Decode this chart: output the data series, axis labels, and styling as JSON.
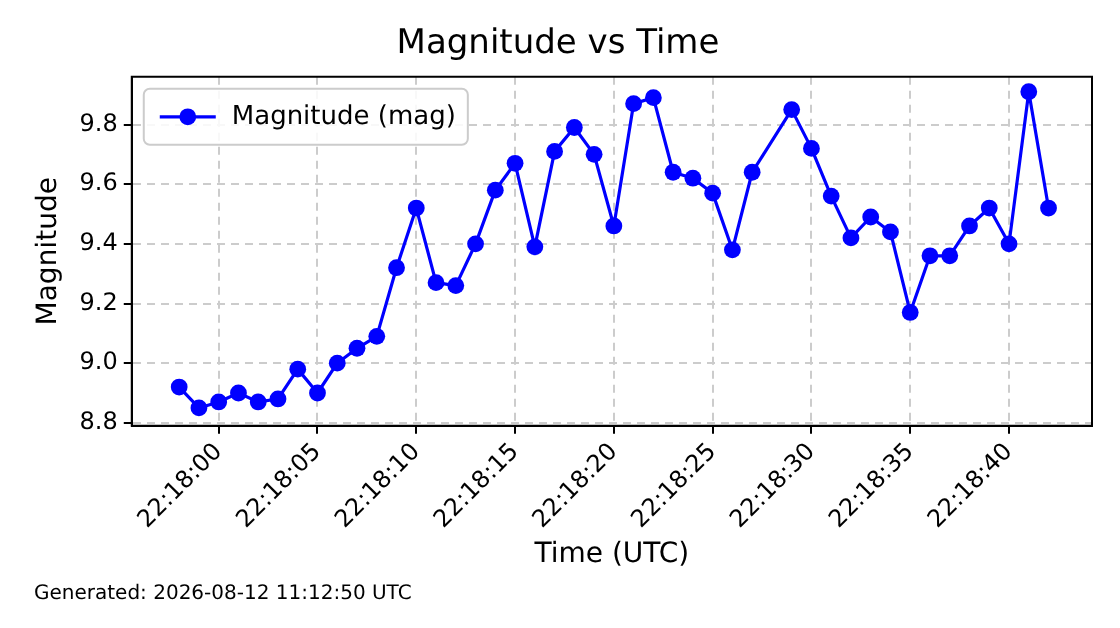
{
  "chart_data": {
    "type": "line",
    "title": "Magnitude vs Time",
    "xlabel": "Time (UTC)",
    "ylabel": "Magnitude",
    "annotations": [
      "Generated: 2026-08-12 11:12:50 UTC"
    ],
    "x": [
      80278,
      80279,
      80280,
      80281,
      80282,
      80283,
      80284,
      80285,
      80286,
      80287,
      80288,
      80289,
      80290,
      80291,
      80292,
      80293,
      80294,
      80295,
      80296,
      80297,
      80298,
      80299,
      80300,
      80301,
      80302,
      80303,
      80304,
      80305,
      80306,
      80307,
      80309,
      80310,
      80311,
      80312,
      80313,
      80314,
      80315,
      80316,
      80317,
      80318,
      80319,
      80320,
      80321,
      80322
    ],
    "series": [
      {
        "name": "Magnitude (mag)",
        "color": "#0000ff",
        "values": [
          8.92,
          8.85,
          8.87,
          8.9,
          8.87,
          8.88,
          8.98,
          8.9,
          9.0,
          9.05,
          9.09,
          9.32,
          9.52,
          9.27,
          9.26,
          9.4,
          9.58,
          9.67,
          9.39,
          9.71,
          9.79,
          9.7,
          9.46,
          9.87,
          9.89,
          9.64,
          9.62,
          9.57,
          9.38,
          9.64,
          9.85,
          9.72,
          9.56,
          9.42,
          9.49,
          9.44,
          9.17,
          9.36,
          9.36,
          9.46,
          9.52,
          9.4,
          9.91,
          9.52
        ]
      }
    ],
    "xlim": [
      80275.6,
      80324.2
    ],
    "xticks": [
      {
        "value": 80280,
        "label": "22:18:00"
      },
      {
        "value": 80285,
        "label": "22:18:05"
      },
      {
        "value": 80290,
        "label": "22:18:10"
      },
      {
        "value": 80295,
        "label": "22:18:15"
      },
      {
        "value": 80300,
        "label": "22:18:20"
      },
      {
        "value": 80305,
        "label": "22:18:25"
      },
      {
        "value": 80310,
        "label": "22:18:30"
      },
      {
        "value": 80315,
        "label": "22:18:35"
      },
      {
        "value": 80320,
        "label": "22:18:40"
      }
    ],
    "ylim": [
      8.79,
      9.96
    ],
    "yticks": [
      8.8,
      {
        "value": 9.0,
        "label": "9.0"
      },
      9.2,
      9.4,
      9.6,
      9.8
    ],
    "grid": true,
    "legend": "top left",
    "marker": "circle",
    "line_style": "solid"
  }
}
